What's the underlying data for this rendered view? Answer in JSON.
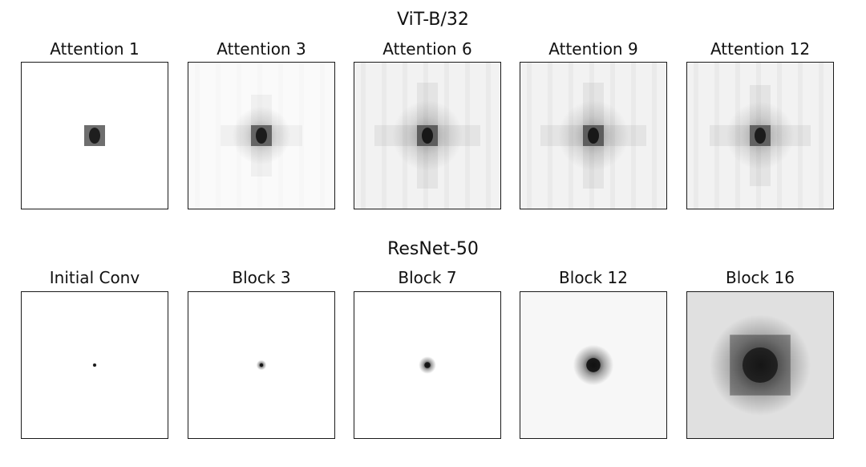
{
  "figure": {
    "rows": [
      {
        "title": "ViT-B/32",
        "panels": [
          {
            "title": "Attention 1",
            "kind": "patch",
            "spread": 0.0,
            "intensity": 0.85,
            "haze": 0.0
          },
          {
            "title": "Attention 3",
            "kind": "patch",
            "spread": 0.35,
            "intensity": 0.85,
            "haze": 0.02
          },
          {
            "title": "Attention 6",
            "kind": "patch",
            "spread": 0.6,
            "intensity": 0.9,
            "haze": 0.05
          },
          {
            "title": "Attention 9",
            "kind": "patch",
            "spread": 0.6,
            "intensity": 0.9,
            "haze": 0.05
          },
          {
            "title": "Attention 12",
            "kind": "patch",
            "spread": 0.55,
            "intensity": 0.85,
            "haze": 0.05
          }
        ]
      },
      {
        "title": "ResNet-50",
        "panels": [
          {
            "title": "Initial Conv",
            "kind": "blob",
            "spread": 0.03,
            "intensity": 0.9,
            "haze": 0.0
          },
          {
            "title": "Block 3",
            "kind": "blob",
            "spread": 0.07,
            "intensity": 0.9,
            "haze": 0.0
          },
          {
            "title": "Block 7",
            "kind": "blob",
            "spread": 0.12,
            "intensity": 0.9,
            "haze": 0.0
          },
          {
            "title": "Block 12",
            "kind": "blob",
            "spread": 0.28,
            "intensity": 0.9,
            "haze": 0.03
          },
          {
            "title": "Block 16",
            "kind": "blob",
            "spread": 0.7,
            "intensity": 0.75,
            "haze": 0.12
          }
        ]
      }
    ]
  }
}
